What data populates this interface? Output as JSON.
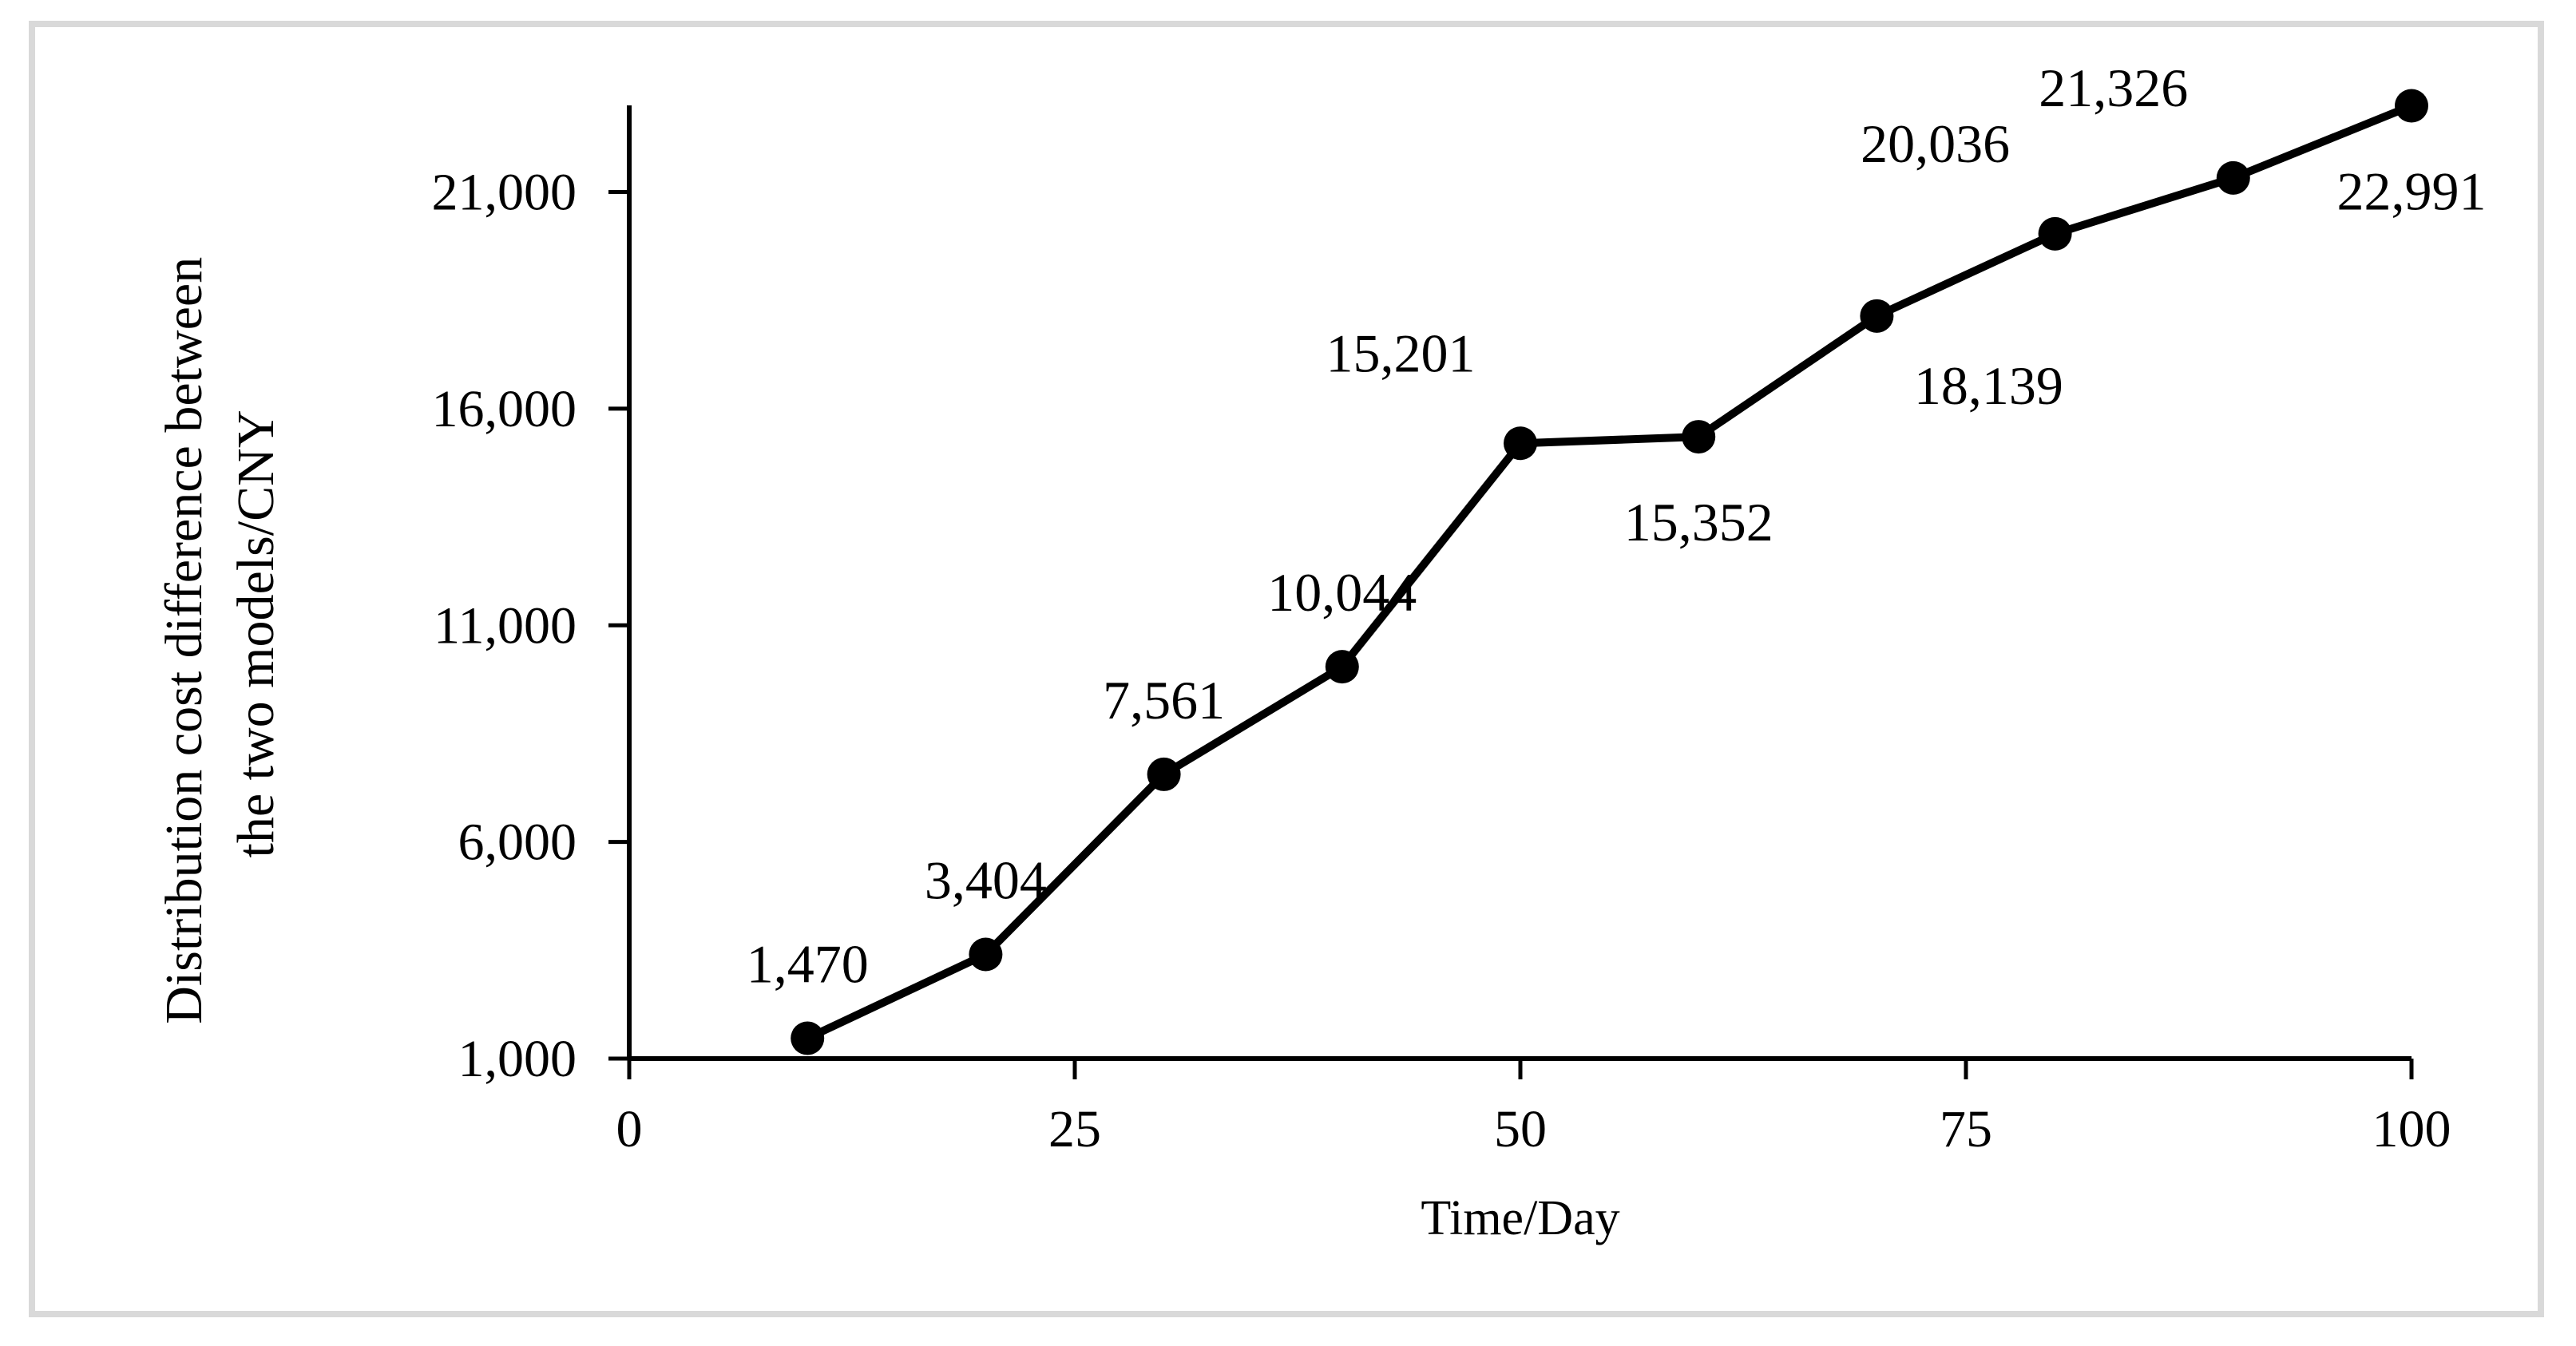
{
  "chart_data": {
    "type": "line",
    "title": "",
    "xlabel": "Time/Day",
    "ylabel_lines": [
      "Distribution cost difference between",
      "the two models/CNY"
    ],
    "xlim": [
      0,
      100
    ],
    "ylim": [
      1000,
      23000
    ],
    "x_ticks": [
      0,
      25,
      50,
      75,
      100
    ],
    "y_ticks": [
      1000,
      6000,
      11000,
      16000,
      21000
    ],
    "x_tick_labels": [
      "0",
      "25",
      "50",
      "75",
      "100"
    ],
    "y_tick_labels": [
      "1,000",
      "6,000",
      "11,000",
      "16,000",
      "21,000"
    ],
    "grid": false,
    "legend": "none",
    "series": [
      {
        "x": [
          10,
          20,
          30,
          40,
          50,
          60,
          70,
          80,
          90,
          100
        ],
        "y": [
          1470,
          3404,
          7561,
          10044,
          15201,
          15352,
          18139,
          20036,
          21326,
          22991
        ],
        "color": "#000000"
      }
    ],
    "data_labels": [
      {
        "x": 10,
        "text": "1,470",
        "placement": "above"
      },
      {
        "x": 20,
        "text": "3,404",
        "placement": "above"
      },
      {
        "x": 30,
        "text": "7,561",
        "placement": "above"
      },
      {
        "x": 40,
        "text": "10,044",
        "placement": "above"
      },
      {
        "x": 50,
        "text": "15,201",
        "placement": "above-left"
      },
      {
        "x": 60,
        "text": "15,352",
        "placement": "below"
      },
      {
        "x": 70,
        "text": "18,139",
        "placement": "below-right"
      },
      {
        "x": 80,
        "text": "20,036",
        "placement": "above-left"
      },
      {
        "x": 90,
        "text": "21,326",
        "placement": "above-left"
      },
      {
        "x": 100,
        "text": "22,991",
        "placement": "below"
      }
    ]
  }
}
